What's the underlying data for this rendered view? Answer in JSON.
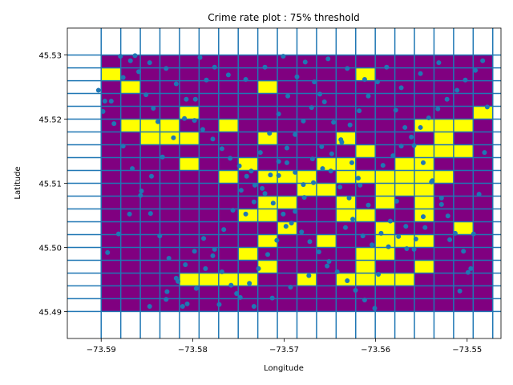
{
  "chart_data": {
    "type": "heatmap",
    "title": "Crime rate plot : 75% threshold",
    "xlabel": "Longitude",
    "ylabel": "Latitude",
    "xlim": [
      -73.5937,
      -73.5463
    ],
    "ylim": [
      45.4858,
      45.5342
    ],
    "grid_x": [
      -73.59,
      -73.5472
    ],
    "grid_y": [
      45.49,
      45.53
    ],
    "cols": 20,
    "rows": 20,
    "xticks": [
      -73.59,
      -73.58,
      -73.57,
      -73.56,
      -73.55
    ],
    "xtick_labels": [
      "−73.59",
      "−73.58",
      "−73.57",
      "−73.56",
      "−73.55"
    ],
    "yticks": [
      45.49,
      45.5,
      45.51,
      45.52,
      45.53
    ],
    "ytick_labels": [
      "45.49",
      "45.50",
      "45.51",
      "45.52",
      "45.53"
    ],
    "colors": {
      "below_threshold": "#800080",
      "above_threshold": "#ffff00",
      "gridline": "#1f77b4",
      "point": "#1f77b4"
    },
    "cells_rows_top_to_bottom": [
      "00000000000000000000",
      "10000000000001000000",
      "01000000100000000000",
      "00000000000000000000",
      "00004000000000000001",
      "04440040000000001110",
      "00444000100010000100",
      "00000000000001001110",
      "00004001000110011000",
      "00000010111011111100",
      "00000000001100111000",
      "00000000110010101000",
      "00000001100011001000",
      "00000000010000100010",
      "00000000100100111000",
      "00000001000001100000",
      "00000000100001001000",
      "00001111001011110000",
      "00000000000000000000",
      "00000000000000000000"
    ],
    "points": [
      [
        -73.5903,
        45.5245
      ],
      [
        -73.5898,
        45.5212
      ],
      [
        -73.5889,
        45.5228
      ],
      [
        -73.5876,
        45.5265
      ],
      [
        -73.5868,
        45.5291
      ],
      [
        -73.5859,
        45.5274
      ],
      [
        -73.5851,
        45.5238
      ],
      [
        -73.5843,
        45.5217
      ],
      [
        -73.5838,
        45.5196
      ],
      [
        -73.5829,
        45.5279
      ],
      [
        -73.5818,
        45.5255
      ],
      [
        -73.5807,
        45.5231
      ],
      [
        -73.5798,
        45.5198
      ],
      [
        -73.5789,
        45.5184
      ],
      [
        -73.5778,
        45.5169
      ],
      [
        -73.5768,
        45.5154
      ],
      [
        -73.5759,
        45.5139
      ],
      [
        -73.5749,
        45.5127
      ],
      [
        -73.5741,
        45.5111
      ],
      [
        -73.5732,
        45.5097
      ],
      [
        -73.5721,
        45.5084
      ],
      [
        -73.5712,
        45.5069
      ],
      [
        -73.5701,
        45.5052
      ],
      [
        -73.5692,
        45.5038
      ],
      [
        -73.5681,
        45.5024
      ],
      [
        -73.5672,
        45.5009
      ],
      [
        -73.5662,
        45.4993
      ],
      [
        -73.5651,
        45.4978
      ],
      [
        -73.5642,
        45.4962
      ],
      [
        -73.5631,
        45.4948
      ],
      [
        -73.5622,
        45.4933
      ],
      [
        -73.5612,
        45.4918
      ],
      [
        -73.5601,
        45.4905
      ],
      [
        -73.5592,
        45.5128
      ],
      [
        -73.5581,
        45.5143
      ],
      [
        -73.5572,
        45.5158
      ],
      [
        -73.5561,
        45.5172
      ],
      [
        -73.5551,
        45.5187
      ],
      [
        -73.5542,
        45.5202
      ],
      [
        -73.5532,
        45.5216
      ],
      [
        -73.5522,
        45.5231
      ],
      [
        -73.5511,
        45.5245
      ],
      [
        -73.5502,
        45.5261
      ],
      [
        -73.5491,
        45.5276
      ],
      [
        -73.5483,
        45.5291
      ],
      [
        -73.5478,
        45.5219
      ],
      [
        -73.5481,
        45.5148
      ],
      [
        -73.5487,
        45.5083
      ],
      [
        -73.5493,
        45.5021
      ],
      [
        -73.5499,
        45.4961
      ],
      [
        -73.5508,
        45.4932
      ],
      [
        -73.5519,
        45.5012
      ],
      [
        -73.5528,
        45.5067
      ],
      [
        -73.5539,
        45.5102
      ],
      [
        -73.5548,
        45.5048
      ],
      [
        -73.5558,
        45.4997
      ],
      [
        -73.5567,
        45.5033
      ],
      [
        -73.5577,
        45.5072
      ],
      [
        -73.5586,
        45.5001
      ],
      [
        -73.5597,
        45.4958
      ],
      [
        -73.5608,
        45.5066
      ],
      [
        -73.5617,
        45.5097
      ],
      [
        -73.5626,
        45.5132
      ],
      [
        -73.5637,
        45.5164
      ],
      [
        -73.5646,
        45.5195
      ],
      [
        -73.5656,
        45.5227
      ],
      [
        -73.5667,
        45.5258
      ],
      [
        -73.5677,
        45.5289
      ],
      [
        -73.5686,
        45.5266
      ],
      [
        -73.5696,
        45.5236
      ],
      [
        -73.5706,
        45.5208
      ],
      [
        -73.5716,
        45.5178
      ],
      [
        -73.5726,
        45.5148
      ],
      [
        -73.5736,
        45.5119
      ],
      [
        -73.5747,
        45.5089
      ],
      [
        -73.5756,
        45.5058
      ],
      [
        -73.5766,
        45.5028
      ],
      [
        -73.5776,
        45.4997
      ],
      [
        -73.5786,
        45.4967
      ],
      [
        -73.5796,
        45.4936
      ],
      [
        -73.5806,
        45.4912
      ],
      [
        -73.5816,
        45.4947
      ],
      [
        -73.5826,
        45.4983
      ],
      [
        -73.5836,
        45.5018
      ],
      [
        -73.5846,
        45.5053
      ],
      [
        -73.5856,
        45.5088
      ],
      [
        -73.5866,
        45.5123
      ],
      [
        -73.5876,
        45.5158
      ],
      [
        -73.5886,
        45.5193
      ],
      [
        -73.5896,
        45.5228
      ],
      [
        -73.5828,
        45.4931
      ],
      [
        -73.5818,
        45.4952
      ],
      [
        -73.5808,
        45.4973
      ],
      [
        -73.5798,
        45.4994
      ],
      [
        -73.5788,
        45.5014
      ],
      [
        -73.5778,
        45.4987
      ],
      [
        -73.5768,
        45.4962
      ],
      [
        -73.5758,
        45.4941
      ],
      [
        -73.5748,
        45.4922
      ],
      [
        -73.5738,
        45.4944
      ],
      [
        -73.5728,
        45.4967
      ],
      [
        -73.5718,
        45.4989
      ],
      [
        -73.5708,
        45.5011
      ],
      [
        -73.5698,
        45.5033
      ],
      [
        -73.5688,
        45.5056
      ],
      [
        -73.5678,
        45.5078
      ],
      [
        -73.5668,
        45.5101
      ],
      [
        -73.5658,
        45.5123
      ],
      [
        -73.5648,
        45.5146
      ],
      [
        -73.5638,
        45.5168
      ],
      [
        -73.5628,
        45.5191
      ],
      [
        -73.5618,
        45.5213
      ],
      [
        -73.5608,
        45.5236
      ],
      [
        -73.5598,
        45.5258
      ],
      [
        -73.5588,
        45.5281
      ],
      [
        -73.5578,
        45.5214
      ],
      [
        -73.5568,
        45.5187
      ],
      [
        -73.5558,
        45.5159
      ],
      [
        -73.5548,
        45.5132
      ],
      [
        -73.5538,
        45.5104
      ],
      [
        -73.5528,
        45.5077
      ],
      [
        -73.5521,
        45.5049
      ],
      [
        -73.5513,
        45.5022
      ],
      [
        -73.5504,
        45.4994
      ],
      [
        -73.5496,
        45.4967
      ],
      [
        -73.5633,
        45.5031
      ],
      [
        -73.5625,
        45.5044
      ],
      [
        -73.5614,
        45.5018
      ],
      [
        -73.5604,
        45.5004
      ],
      [
        -73.5594,
        45.5022
      ],
      [
        -73.5584,
        45.5041
      ],
      [
        -73.5575,
        45.5017
      ],
      [
        -73.5566,
        45.4998
      ],
      [
        -73.5556,
        45.5013
      ],
      [
        -73.5546,
        45.5031
      ],
      [
        -73.5706,
        45.5112
      ],
      [
        -73.5697,
        45.5132
      ],
      [
        -73.5688,
        45.5117
      ],
      [
        -73.5679,
        45.5098
      ],
      [
        -73.5669,
        45.5138
      ],
      [
        -73.5659,
        45.5157
      ],
      [
        -73.5649,
        45.5119
      ],
      [
        -73.5639,
        45.5094
      ],
      [
        -73.5629,
        45.5077
      ],
      [
        -73.5619,
        45.5108
      ],
      [
        -73.5879,
        45.5298
      ],
      [
        -73.5863,
        45.5299
      ],
      [
        -73.5847,
        45.5288
      ],
      [
        -73.5792,
        45.5296
      ],
      [
        -73.5776,
        45.5281
      ],
      [
        -73.5761,
        45.5269
      ],
      [
        -73.5742,
        45.5262
      ],
      [
        -73.5721,
        45.5281
      ],
      [
        -73.5701,
        45.5298
      ],
      [
        -73.5652,
        45.5294
      ],
      [
        -73.5631,
        45.5279
      ],
      [
        -73.5612,
        45.5262
      ],
      [
        -73.5572,
        45.5249
      ],
      [
        -73.5551,
        45.5271
      ],
      [
        -73.5531,
        45.5288
      ],
      [
        -73.5847,
        45.4908
      ],
      [
        -73.5829,
        45.4919
      ],
      [
        -73.5811,
        45.4908
      ],
      [
        -73.5771,
        45.4911
      ],
      [
        -73.5752,
        45.4928
      ],
      [
        -73.5733,
        45.4908
      ],
      [
        -73.5713,
        45.4921
      ],
      [
        -73.5693,
        45.4938
      ],
      [
        -73.5673,
        45.4956
      ],
      [
        -73.5653,
        45.4971
      ],
      [
        -73.5893,
        45.4992
      ],
      [
        -73.5881,
        45.5021
      ],
      [
        -73.5869,
        45.5052
      ],
      [
        -73.5857,
        45.5081
      ],
      [
        -73.5845,
        45.5111
      ],
      [
        -73.5833,
        45.5141
      ],
      [
        -73.5821,
        45.5171
      ],
      [
        -73.5809,
        45.5201
      ],
      [
        -73.5797,
        45.5231
      ],
      [
        -73.5785,
        45.5261
      ],
      [
        -73.5742,
        45.5052
      ],
      [
        -73.5733,
        45.5071
      ],
      [
        -73.5724,
        45.5092
      ],
      [
        -73.5715,
        45.5113
      ],
      [
        -73.5706,
        45.5134
      ],
      [
        -73.5697,
        45.5155
      ],
      [
        -73.5688,
        45.5176
      ],
      [
        -73.5679,
        45.5197
      ],
      [
        -73.567,
        45.5218
      ],
      [
        -73.5661,
        45.5239
      ]
    ]
  }
}
